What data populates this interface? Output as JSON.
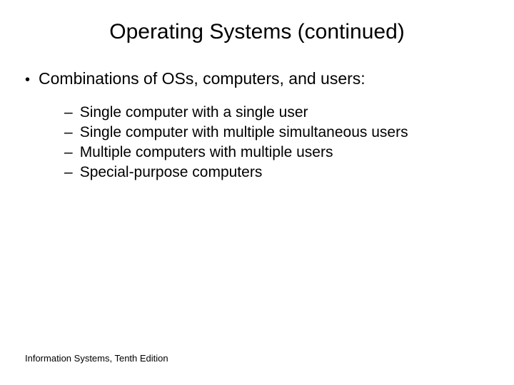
{
  "title": "Operating Systems (continued)",
  "level1_bullet_char": "•",
  "level2_bullet_char": "–",
  "level1": {
    "text": "Combinations of OSs, computers, and users:"
  },
  "level2_items": [
    "Single computer with a single user",
    "Single computer with multiple simultaneous users",
    "Multiple computers with multiple users",
    "Special-purpose computers"
  ],
  "footer": "Information Systems, Tenth Edition",
  "colors": {
    "background": "#ffffff",
    "text": "#000000"
  },
  "typography": {
    "title_fontsize": 30,
    "level1_fontsize": 23,
    "level2_fontsize": 21,
    "footer_fontsize": 13
  }
}
